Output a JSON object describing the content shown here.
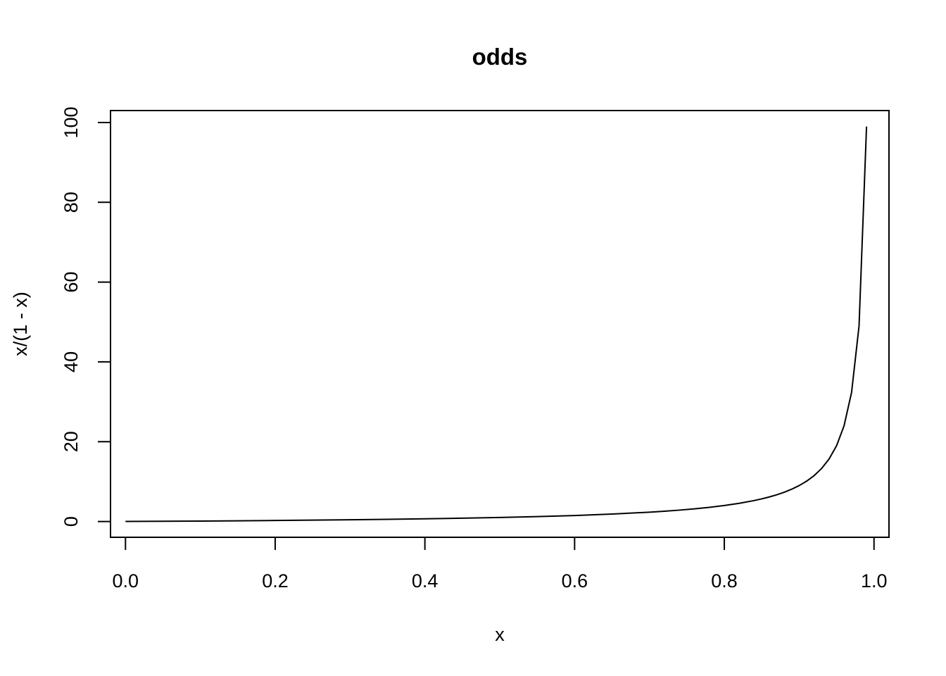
{
  "chart_data": {
    "type": "line",
    "title": "odds",
    "xlabel": "x",
    "ylabel": "x/(1 - x)",
    "xlim": [
      -0.02,
      1.02
    ],
    "ylim": [
      -3.96,
      103.0
    ],
    "x_ticks": [
      0.0,
      0.2,
      0.4,
      0.6,
      0.8,
      1.0
    ],
    "x_tick_labels": [
      "0.0",
      "0.2",
      "0.4",
      "0.6",
      "0.8",
      "1.0"
    ],
    "y_ticks": [
      0,
      20,
      40,
      60,
      80,
      100
    ],
    "y_tick_labels": [
      "0",
      "20",
      "40",
      "60",
      "80",
      "100"
    ],
    "grid": false,
    "line_color": "#000000",
    "series": [
      {
        "x": [
          0.0,
          0.05,
          0.1,
          0.15,
          0.2,
          0.25,
          0.3,
          0.35,
          0.4,
          0.45,
          0.5,
          0.55,
          0.6,
          0.65,
          0.7,
          0.72,
          0.74,
          0.76,
          0.78,
          0.8,
          0.82,
          0.84,
          0.85,
          0.86,
          0.87,
          0.88,
          0.89,
          0.9,
          0.91,
          0.92,
          0.93,
          0.94,
          0.95,
          0.96,
          0.97,
          0.98,
          0.99
        ],
        "y": [
          0.0,
          0.053,
          0.111,
          0.176,
          0.25,
          0.333,
          0.429,
          0.538,
          0.667,
          0.818,
          1.0,
          1.222,
          1.5,
          1.857,
          2.333,
          2.571,
          2.846,
          3.167,
          3.545,
          4.0,
          4.556,
          5.25,
          5.667,
          6.143,
          6.692,
          7.333,
          8.091,
          9.0,
          10.111,
          11.5,
          13.286,
          15.667,
          19.0,
          24.0,
          32.333,
          49.0,
          99.0
        ]
      }
    ]
  }
}
